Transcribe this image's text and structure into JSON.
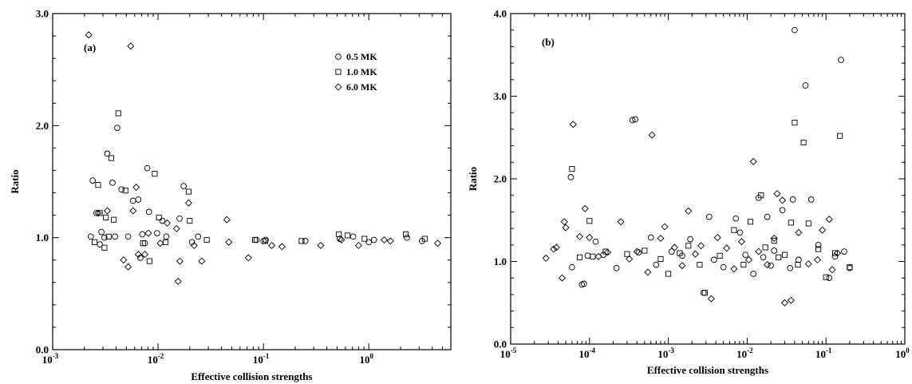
{
  "chart_data": [
    {
      "type": "scatter",
      "panel_label": "(a)",
      "xlabel": "Effective collision strengths",
      "ylabel": "Ratio",
      "xscale": "log",
      "xlim": [
        0.001,
        6
      ],
      "ylim": [
        0.0,
        3.0
      ],
      "x_ticks": [
        {
          "value": 0.001,
          "base": "10",
          "exp": "-3"
        },
        {
          "value": 0.01,
          "base": "10",
          "exp": "-2"
        },
        {
          "value": 0.1,
          "base": "10",
          "exp": "-1"
        },
        {
          "value": 1,
          "base": "10",
          "exp": "0"
        }
      ],
      "y_ticks": [
        {
          "value": 0.0,
          "label": "0.0"
        },
        {
          "value": 1.0,
          "label": "1.0"
        },
        {
          "value": 2.0,
          "label": "2.0"
        },
        {
          "value": 3.0,
          "label": "3.0"
        }
      ],
      "legend": {
        "position": "top-right",
        "entries": [
          {
            "name": "0.5 MK",
            "marker": "circle"
          },
          {
            "name": "1.0 MK",
            "marker": "square"
          },
          {
            "name": "6.0 MK",
            "marker": "diamond"
          }
        ]
      },
      "series": [
        {
          "name": "0.5 MK",
          "marker": "circle",
          "points": [
            [
              0.0023,
              1.01
            ],
            [
              0.0024,
              1.51
            ],
            [
              0.0026,
              1.22
            ],
            [
              0.0028,
              0.94
            ],
            [
              0.0029,
              1.05
            ],
            [
              0.0031,
              1.0
            ],
            [
              0.0033,
              1.75
            ],
            [
              0.0037,
              1.49
            ],
            [
              0.0039,
              1.01
            ],
            [
              0.0041,
              1.98
            ],
            [
              0.0045,
              1.43
            ],
            [
              0.0052,
              1.01
            ],
            [
              0.0058,
              1.33
            ],
            [
              0.0065,
              1.34
            ],
            [
              0.0068,
              0.82
            ],
            [
              0.0071,
              1.03
            ],
            [
              0.0075,
              0.95
            ],
            [
              0.0079,
              1.62
            ],
            [
              0.0082,
              1.23
            ],
            [
              0.0098,
              1.04
            ],
            [
              0.011,
              1.15
            ],
            [
              0.012,
              1.01
            ],
            [
              0.016,
              1.17
            ],
            [
              0.0175,
              1.46
            ],
            [
              0.021,
              0.96
            ],
            [
              0.024,
              1.01
            ],
            [
              0.086,
              0.98
            ],
            [
              0.1,
              0.97
            ],
            [
              0.105,
              0.98
            ],
            [
              0.25,
              0.97
            ],
            [
              0.53,
              0.99
            ],
            [
              0.71,
              1.01
            ],
            [
              1.0,
              0.96
            ],
            [
              1.12,
              0.98
            ],
            [
              2.3,
              1.0
            ],
            [
              3.2,
              0.97
            ]
          ]
        },
        {
          "name": "1.0 MK",
          "marker": "square",
          "points": [
            [
              0.0025,
              0.96
            ],
            [
              0.0027,
              1.47
            ],
            [
              0.0028,
              1.22
            ],
            [
              0.0031,
              0.91
            ],
            [
              0.0032,
              1.18
            ],
            [
              0.0034,
              1.01
            ],
            [
              0.0036,
              1.71
            ],
            [
              0.0038,
              1.16
            ],
            [
              0.0042,
              2.11
            ],
            [
              0.0049,
              1.42
            ],
            [
              0.0072,
              0.95
            ],
            [
              0.0083,
              0.79
            ],
            [
              0.0093,
              1.57
            ],
            [
              0.0102,
              1.18
            ],
            [
              0.0118,
              0.96
            ],
            [
              0.0195,
              1.41
            ],
            [
              0.02,
              1.15
            ],
            [
              0.029,
              0.98
            ],
            [
              0.083,
              0.98
            ],
            [
              0.104,
              0.97
            ],
            [
              0.23,
              0.97
            ],
            [
              0.52,
              1.03
            ],
            [
              0.63,
              1.02
            ],
            [
              0.91,
              0.99
            ],
            [
              2.25,
              1.03
            ],
            [
              3.4,
              0.99
            ]
          ]
        },
        {
          "name": "6.0 MK",
          "marker": "diamond",
          "points": [
            [
              0.0022,
              2.81
            ],
            [
              0.0027,
              1.22
            ],
            [
              0.0033,
              1.24
            ],
            [
              0.0047,
              0.8
            ],
            [
              0.0052,
              0.74
            ],
            [
              0.0055,
              2.71
            ],
            [
              0.0058,
              1.24
            ],
            [
              0.0062,
              1.45
            ],
            [
              0.0065,
              0.85
            ],
            [
              0.0075,
              0.85
            ],
            [
              0.0081,
              1.04
            ],
            [
              0.0105,
              0.95
            ],
            [
              0.0122,
              1.13
            ],
            [
              0.015,
              1.08
            ],
            [
              0.0155,
              0.61
            ],
            [
              0.0161,
              0.79
            ],
            [
              0.0195,
              1.31
            ],
            [
              0.022,
              0.93
            ],
            [
              0.026,
              0.79
            ],
            [
              0.045,
              1.16
            ],
            [
              0.047,
              0.96
            ],
            [
              0.072,
              0.82
            ],
            [
              0.12,
              0.93
            ],
            [
              0.15,
              0.92
            ],
            [
              0.35,
              0.93
            ],
            [
              0.55,
              0.98
            ],
            [
              0.8,
              0.93
            ],
            [
              1.4,
              0.98
            ],
            [
              1.6,
              0.97
            ],
            [
              4.5,
              0.95
            ]
          ]
        }
      ]
    },
    {
      "type": "scatter",
      "panel_label": "(b)",
      "xlabel": "Effective collision strengths",
      "ylabel": "Ratio",
      "xscale": "log",
      "xlim": [
        1e-05,
        1
      ],
      "ylim": [
        0.0,
        4.0
      ],
      "x_ticks": [
        {
          "value": 1e-05,
          "base": "10",
          "exp": "-5"
        },
        {
          "value": 0.0001,
          "base": "10",
          "exp": "-4"
        },
        {
          "value": 0.001,
          "base": "10",
          "exp": "-3"
        },
        {
          "value": 0.01,
          "base": "10",
          "exp": "-2"
        },
        {
          "value": 0.1,
          "base": "10",
          "exp": "-1"
        },
        {
          "value": 1,
          "base": "10",
          "exp": "0"
        }
      ],
      "y_ticks": [
        {
          "value": 0.0,
          "label": "0.0"
        },
        {
          "value": 1.0,
          "label": "1.0"
        },
        {
          "value": 2.0,
          "label": "2.0"
        },
        {
          "value": 3.0,
          "label": "3.0"
        },
        {
          "value": 4.0,
          "label": "4.0"
        }
      ],
      "series": [
        {
          "name": "0.5 MK",
          "marker": "circle",
          "points": [
            [
              5.8e-05,
              2.02
            ],
            [
              6e-05,
              0.93
            ],
            [
              8e-05,
              0.72
            ],
            [
              8.5e-05,
              0.73
            ],
            [
              9.5e-05,
              1.07
            ],
            [
              0.00012,
              1.24
            ],
            [
              0.00015,
              1.08
            ],
            [
              0.00022,
              0.92
            ],
            [
              0.00035,
              2.71
            ],
            [
              0.00038,
              2.72
            ],
            [
              0.00042,
              1.11
            ],
            [
              0.0006,
              1.29
            ],
            [
              0.0007,
              0.96
            ],
            [
              0.0011,
              1.12
            ],
            [
              0.0015,
              1.07
            ],
            [
              0.0019,
              1.27
            ],
            [
              0.0028,
              0.62
            ],
            [
              0.0033,
              1.54
            ],
            [
              0.0038,
              1.02
            ],
            [
              0.005,
              0.93
            ],
            [
              0.0072,
              1.52
            ],
            [
              0.0081,
              1.35
            ],
            [
              0.0095,
              1.08
            ],
            [
              0.012,
              0.85
            ],
            [
              0.014,
              1.77
            ],
            [
              0.016,
              1.05
            ],
            [
              0.018,
              1.54
            ],
            [
              0.02,
              0.95
            ],
            [
              0.022,
              1.13
            ],
            [
              0.028,
              1.62
            ],
            [
              0.035,
              0.92
            ],
            [
              0.038,
              1.75
            ],
            [
              0.04,
              3.8
            ],
            [
              0.045,
              1.02
            ],
            [
              0.055,
              3.13
            ],
            [
              0.065,
              1.75
            ],
            [
              0.08,
              1.2
            ],
            [
              0.11,
              0.8
            ],
            [
              0.13,
              1.06
            ],
            [
              0.155,
              3.44
            ],
            [
              0.17,
              1.12
            ],
            [
              0.2,
              0.92
            ]
          ]
        },
        {
          "name": "1.0 MK",
          "marker": "square",
          "points": [
            [
              6e-05,
              2.12
            ],
            [
              7.5e-05,
              1.05
            ],
            [
              0.0001,
              1.49
            ],
            [
              0.00011,
              1.06
            ],
            [
              0.00016,
              1.12
            ],
            [
              0.0003,
              1.09
            ],
            [
              0.0005,
              1.13
            ],
            [
              0.0008,
              1.03
            ],
            [
              0.001,
              0.85
            ],
            [
              0.0014,
              1.1
            ],
            [
              0.0018,
              1.19
            ],
            [
              0.0025,
              0.96
            ],
            [
              0.0029,
              0.62
            ],
            [
              0.0045,
              1.07
            ],
            [
              0.0068,
              1.38
            ],
            [
              0.009,
              0.96
            ],
            [
              0.011,
              1.48
            ],
            [
              0.015,
              1.8
            ],
            [
              0.017,
              1.17
            ],
            [
              0.022,
              1.25
            ],
            [
              0.025,
              1.05
            ],
            [
              0.03,
              1.08
            ],
            [
              0.036,
              1.47
            ],
            [
              0.04,
              2.68
            ],
            [
              0.044,
              0.96
            ],
            [
              0.052,
              2.44
            ],
            [
              0.06,
              1.46
            ],
            [
              0.08,
              1.15
            ],
            [
              0.1,
              0.81
            ],
            [
              0.13,
              1.1
            ],
            [
              0.15,
              2.52
            ],
            [
              0.2,
              0.93
            ]
          ]
        },
        {
          "name": "6.0 MK",
          "marker": "diamond",
          "points": [
            [
              2.8e-05,
              1.04
            ],
            [
              3.5e-05,
              1.15
            ],
            [
              3.8e-05,
              1.17
            ],
            [
              4.5e-05,
              0.8
            ],
            [
              4.8e-05,
              1.48
            ],
            [
              5e-05,
              1.41
            ],
            [
              6.2e-05,
              2.66
            ],
            [
              7.5e-05,
              1.3
            ],
            [
              8.8e-05,
              1.64
            ],
            [
              0.0001,
              1.29
            ],
            [
              0.00013,
              1.06
            ],
            [
              0.00017,
              1.11
            ],
            [
              0.00025,
              1.48
            ],
            [
              0.00032,
              1.03
            ],
            [
              0.0004,
              1.12
            ],
            [
              0.00055,
              0.87
            ],
            [
              0.00062,
              2.53
            ],
            [
              0.0008,
              1.28
            ],
            [
              0.0009,
              1.42
            ],
            [
              0.0012,
              1.17
            ],
            [
              0.0015,
              0.95
            ],
            [
              0.0018,
              1.61
            ],
            [
              0.0022,
              1.09
            ],
            [
              0.0026,
              1.19
            ],
            [
              0.0035,
              0.55
            ],
            [
              0.0042,
              1.29
            ],
            [
              0.0055,
              1.16
            ],
            [
              0.0068,
              0.91
            ],
            [
              0.0085,
              1.24
            ],
            [
              0.0105,
              1.02
            ],
            [
              0.012,
              2.21
            ],
            [
              0.014,
              1.12
            ],
            [
              0.018,
              0.96
            ],
            [
              0.022,
              1.28
            ],
            [
              0.024,
              1.82
            ],
            [
              0.028,
              1.74
            ],
            [
              0.03,
              0.5
            ],
            [
              0.036,
              0.53
            ],
            [
              0.045,
              1.35
            ],
            [
              0.06,
              0.97
            ],
            [
              0.078,
              1.02
            ],
            [
              0.09,
              1.38
            ],
            [
              0.11,
              1.51
            ],
            [
              0.12,
              0.9
            ],
            [
              0.14,
              1.1
            ]
          ]
        }
      ]
    }
  ]
}
